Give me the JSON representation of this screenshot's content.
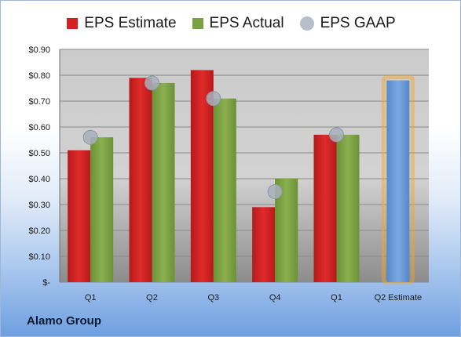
{
  "chart_data": {
    "type": "bar",
    "categories": [
      "Q1",
      "Q2",
      "Q3",
      "Q4",
      "Q1",
      "Q2 Estimate"
    ],
    "series": [
      {
        "name": "EPS Estimate",
        "color": "#d42020",
        "values": [
          0.51,
          0.79,
          0.82,
          0.29,
          0.57,
          null
        ]
      },
      {
        "name": "EPS Actual",
        "color": "#7aa042",
        "values": [
          0.56,
          0.77,
          0.71,
          0.4,
          0.57,
          null
        ]
      },
      {
        "name": "EPS GAAP",
        "color": "#b8bec8",
        "values": [
          0.56,
          0.77,
          0.71,
          0.35,
          0.57,
          null
        ]
      }
    ],
    "forecast": {
      "category": "Q2 Estimate",
      "value": 0.78,
      "color": "#6b9ad6",
      "glow_color": "#f5a623"
    },
    "y_ticks": [
      "$-",
      "$0.10",
      "$0.20",
      "$0.30",
      "$0.40",
      "$0.50",
      "$0.60",
      "$0.70",
      "$0.80",
      "$0.90"
    ],
    "ylim": [
      0,
      0.9
    ],
    "grid": true,
    "legend_position": "top"
  },
  "legend": {
    "estimate": "EPS Estimate",
    "actual": "EPS Actual",
    "gaap": "EPS GAAP"
  },
  "company": "Alamo Group"
}
